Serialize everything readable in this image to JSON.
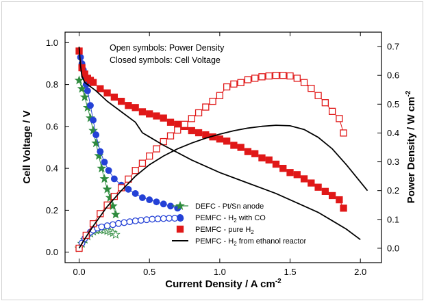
{
  "chart_data": {
    "type": "line",
    "xlabel": "Current Density / A cm",
    "xlabel_sup": "-2",
    "ylabel": "Cell Voltage / V",
    "y2label": "Power Density / W cm",
    "y2label_sup": "-2",
    "xlim": [
      -0.1,
      2.15
    ],
    "ylim": [
      -0.05,
      1.05
    ],
    "y2lim": [
      -0.05,
      0.75
    ],
    "xticks": [
      "0.0",
      "0.5",
      "1.0",
      "1.5",
      "2.0"
    ],
    "yticks": [
      "0.0",
      "0.2",
      "0.4",
      "0.6",
      "0.8",
      "1.0"
    ],
    "y2ticks": [
      "0.0",
      "0.1",
      "0.2",
      "0.3",
      "0.4",
      "0.5",
      "0.6",
      "0.7"
    ],
    "annotations": [
      "Open symbols: Power Density",
      "Closed symbols: Cell Voltage"
    ],
    "legend_position": "bottom-right",
    "legend": [
      {
        "label": "DEFC - Pt/Sn anode",
        "sub": "",
        "suffix": ""
      },
      {
        "label": "PEMFC - H",
        "sub": "2",
        "suffix": " with CO"
      },
      {
        "label": "PEMFC - pure H",
        "sub": "2",
        "suffix": ""
      },
      {
        "label": "PEMFC - H",
        "sub": "2",
        "suffix": " from ethanol reactor"
      }
    ],
    "series": [
      {
        "name": "DEFC - Pt/Sn anode",
        "color": "#2e8b3e",
        "marker": "star",
        "voltage": {
          "x": [
            0.0,
            0.02,
            0.04,
            0.06,
            0.08,
            0.1,
            0.12,
            0.14,
            0.16,
            0.18,
            0.2,
            0.22,
            0.24,
            0.26
          ],
          "y": [
            0.82,
            0.78,
            0.74,
            0.69,
            0.64,
            0.58,
            0.52,
            0.46,
            0.4,
            0.35,
            0.3,
            0.26,
            0.22,
            0.18
          ]
        },
        "power": {
          "x": [
            0.0,
            0.02,
            0.04,
            0.06,
            0.08,
            0.1,
            0.12,
            0.14,
            0.16,
            0.18,
            0.2,
            0.22,
            0.24,
            0.26
          ],
          "y": [
            0.0,
            0.016,
            0.03,
            0.041,
            0.051,
            0.058,
            0.062,
            0.064,
            0.064,
            0.063,
            0.06,
            0.057,
            0.053,
            0.047
          ]
        }
      },
      {
        "name": "PEMFC - H2 with CO",
        "color": "#2441d6",
        "marker": "circle",
        "voltage": {
          "x": [
            0.0,
            0.01,
            0.02,
            0.03,
            0.04,
            0.05,
            0.06,
            0.08,
            0.1,
            0.12,
            0.15,
            0.18,
            0.21,
            0.25,
            0.3,
            0.35,
            0.4,
            0.45,
            0.5,
            0.55,
            0.6,
            0.65,
            0.7
          ],
          "y": [
            0.96,
            0.93,
            0.9,
            0.87,
            0.84,
            0.8,
            0.77,
            0.7,
            0.63,
            0.56,
            0.48,
            0.43,
            0.39,
            0.35,
            0.32,
            0.3,
            0.28,
            0.26,
            0.25,
            0.24,
            0.23,
            0.22,
            0.21
          ]
        },
        "power": {
          "x": [
            0.0,
            0.02,
            0.04,
            0.06,
            0.08,
            0.1,
            0.13,
            0.16,
            0.2,
            0.24,
            0.28,
            0.32,
            0.36,
            0.4,
            0.44,
            0.48,
            0.52,
            0.56,
            0.6,
            0.64,
            0.68,
            0.72
          ],
          "y": [
            0.0,
            0.018,
            0.034,
            0.046,
            0.056,
            0.063,
            0.07,
            0.074,
            0.078,
            0.082,
            0.086,
            0.089,
            0.092,
            0.095,
            0.097,
            0.099,
            0.101,
            0.102,
            0.103,
            0.104,
            0.104,
            0.104
          ]
        }
      },
      {
        "name": "PEMFC - pure H2",
        "color": "#e01818",
        "marker": "square",
        "voltage": {
          "x": [
            0.0,
            0.02,
            0.04,
            0.06,
            0.08,
            0.1,
            0.15,
            0.2,
            0.25,
            0.3,
            0.35,
            0.4,
            0.45,
            0.5,
            0.55,
            0.6,
            0.65,
            0.7,
            0.75,
            0.8,
            0.85,
            0.9,
            0.95,
            1.0,
            1.05,
            1.1,
            1.15,
            1.2,
            1.25,
            1.3,
            1.35,
            1.4,
            1.45,
            1.5,
            1.55,
            1.6,
            1.65,
            1.7,
            1.75,
            1.8,
            1.85,
            1.88
          ],
          "y": [
            0.96,
            0.88,
            0.85,
            0.83,
            0.82,
            0.81,
            0.78,
            0.76,
            0.74,
            0.72,
            0.7,
            0.69,
            0.67,
            0.66,
            0.65,
            0.64,
            0.62,
            0.61,
            0.6,
            0.58,
            0.57,
            0.56,
            0.55,
            0.54,
            0.53,
            0.51,
            0.5,
            0.48,
            0.47,
            0.45,
            0.44,
            0.42,
            0.4,
            0.38,
            0.37,
            0.35,
            0.33,
            0.31,
            0.29,
            0.27,
            0.25,
            0.21
          ]
        },
        "power": {
          "x": [
            0.0,
            0.05,
            0.1,
            0.15,
            0.2,
            0.25,
            0.3,
            0.35,
            0.4,
            0.45,
            0.5,
            0.55,
            0.6,
            0.65,
            0.7,
            0.75,
            0.8,
            0.85,
            0.9,
            0.95,
            1.0,
            1.05,
            1.1,
            1.15,
            1.2,
            1.25,
            1.3,
            1.35,
            1.4,
            1.45,
            1.5,
            1.55,
            1.6,
            1.65,
            1.7,
            1.75,
            1.8,
            1.85,
            1.88
          ],
          "y": [
            0.0,
            0.045,
            0.085,
            0.12,
            0.15,
            0.18,
            0.21,
            0.24,
            0.27,
            0.295,
            0.32,
            0.345,
            0.37,
            0.39,
            0.41,
            0.43,
            0.45,
            0.47,
            0.49,
            0.51,
            0.53,
            0.56,
            0.57,
            0.575,
            0.585,
            0.59,
            0.595,
            0.598,
            0.6,
            0.6,
            0.598,
            0.59,
            0.575,
            0.555,
            0.53,
            0.505,
            0.475,
            0.45,
            0.4
          ]
        }
      },
      {
        "name": "PEMFC - H2 from ethanol reactor",
        "color": "#000000",
        "marker": "line",
        "voltage": {
          "x": [
            0.0,
            0.005,
            0.01,
            0.02,
            0.04,
            0.08,
            0.12,
            0.2,
            0.3,
            0.4,
            0.45,
            0.5,
            0.6,
            0.8,
            1.0,
            1.2,
            1.4,
            1.6,
            1.7,
            1.8,
            1.9,
            2.0
          ],
          "y": [
            0.98,
            0.93,
            0.89,
            0.84,
            0.81,
            0.79,
            0.77,
            0.72,
            0.67,
            0.62,
            0.57,
            0.55,
            0.51,
            0.44,
            0.38,
            0.33,
            0.28,
            0.22,
            0.19,
            0.15,
            0.11,
            0.06
          ]
        },
        "power": {
          "x": [
            0.0,
            0.05,
            0.1,
            0.2,
            0.3,
            0.4,
            0.5,
            0.6,
            0.7,
            0.8,
            0.9,
            1.0,
            1.1,
            1.2,
            1.3,
            1.4,
            1.5,
            1.6,
            1.7,
            1.8,
            1.9,
            2.05
          ],
          "y": [
            0.0,
            0.04,
            0.077,
            0.145,
            0.2,
            0.25,
            0.29,
            0.32,
            0.345,
            0.365,
            0.382,
            0.396,
            0.408,
            0.417,
            0.423,
            0.427,
            0.425,
            0.412,
            0.385,
            0.345,
            0.29,
            0.2
          ]
        }
      }
    ]
  }
}
